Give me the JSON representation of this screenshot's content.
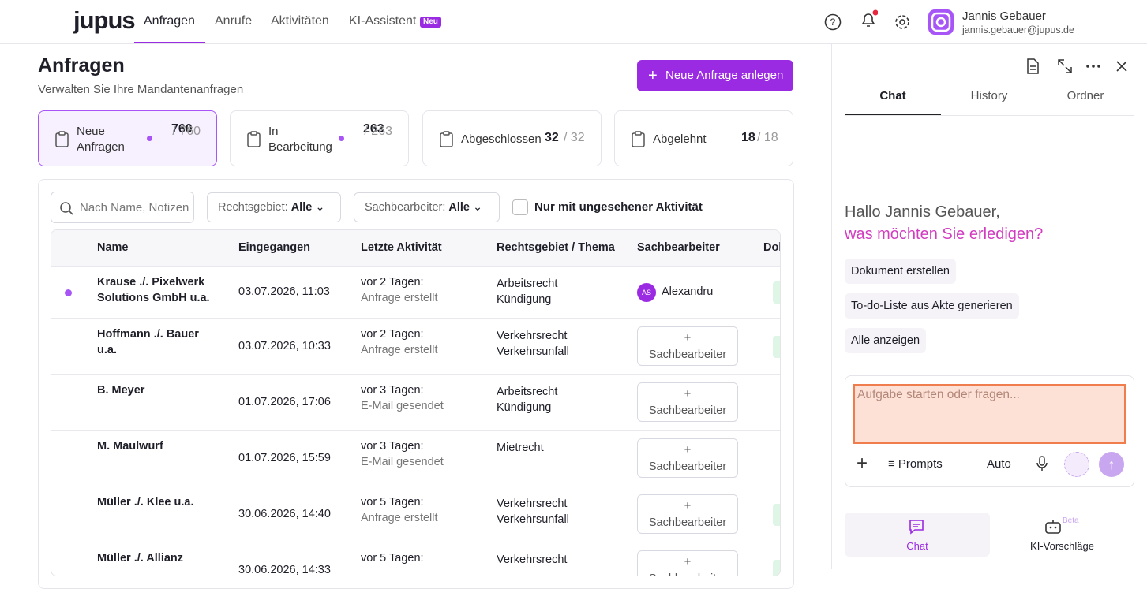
{
  "nav": {
    "logo": "jupus",
    "tabs": [
      "Anfragen",
      "Anrufe",
      "Aktivitäten",
      "KI-Assistent"
    ],
    "badge": "Neu",
    "user_name": "Jannis Gebauer",
    "user_email": "jannis.gebauer@jupus.de"
  },
  "header": {
    "title": "Anfragen",
    "subtitle": "Verwalten Sie Ihre Mandantenanfragen",
    "button": "Neue Anfrage anlegen"
  },
  "stats": [
    {
      "label": "Neue Anfragen",
      "count": "760",
      "total": "/ 760"
    },
    {
      "label": "In Bearbeitung",
      "count": "263",
      "total": "/ 263"
    },
    {
      "label": "Abgeschlossen",
      "count": "32",
      "total": "/ 32"
    },
    {
      "label": "Abgelehnt",
      "count": "18",
      "total": "/ 18"
    }
  ],
  "filters": {
    "search": "Nach Name, Notizen",
    "area_label": "Rechtsgebiet:",
    "area_value": "Alle",
    "assignee_label": "Sachbearbeiter:",
    "assignee_value": "Alle",
    "unseen": "Nur mit ungesehener Aktivität"
  },
  "table": {
    "headers": [
      "Name",
      "Eingegangen",
      "Letzte Aktivität",
      "Rechtsgebiet / Thema",
      "Sachbearbeiter",
      "Dokumente"
    ],
    "assign_label": "Sachbearbeiter",
    "rows": [
      {
        "name": "Krause ./. Pixelwerk Solutions GmbH u.a.",
        "received": "03.07.2026, 11:03",
        "when": "vor 2 Tagen:",
        "what": "Anfrage erstellt",
        "area": "Arbeitsrecht",
        "topic": "Kündigung",
        "initials": "AS",
        "assignee": "Alexandru",
        "unread": true
      },
      {
        "name": "Hoffmann ./. Bauer u.a.",
        "received": "03.07.2026, 10:33",
        "when": "vor 2 Tagen:",
        "what": "Anfrage erstellt",
        "area": "Verkehrsrecht",
        "topic": "Verkehrsunfall",
        "unread": false
      },
      {
        "name": "B. Meyer",
        "received": "01.07.2026, 17:06",
        "when": "vor 3 Tagen:",
        "what": "E-Mail gesendet",
        "area": "Arbeitsrecht",
        "topic": "Kündigung",
        "unread": false
      },
      {
        "name": "M. Maulwurf",
        "received": "01.07.2026, 15:59",
        "when": "vor 3 Tagen:",
        "what": "E-Mail gesendet",
        "area": "Mietrecht",
        "unread": false
      },
      {
        "name": "Müller ./. Klee u.a.",
        "received": "30.06.2026, 14:40",
        "when": "vor 5 Tagen:",
        "what": "Anfrage erstellt",
        "area": "Verkehrsrecht",
        "topic": "Verkehrsunfall",
        "unread": false
      },
      {
        "name": "Müller ./. Allianz",
        "received": "30.06.2026, 14:33",
        "when": "vor 5 Tagen:",
        "area": "Verkehrsrecht",
        "unread": false
      }
    ]
  },
  "assistant": {
    "tabs": [
      "Chat",
      "History",
      "Ordner"
    ],
    "greeting": "Hallo Jannis Gebauer,",
    "question": "was möchten Sie erledigen?",
    "suggestions": [
      "Dokument erstellen",
      "To-do-Liste aus Akte generieren",
      "Alle anzeigen"
    ],
    "input": "Aufgabe starten oder fragen...",
    "prompts": "Prompts",
    "mode": "Auto",
    "bottom_tabs": [
      "Chat",
      "KI-Vorschläge"
    ],
    "beta": "Beta"
  }
}
